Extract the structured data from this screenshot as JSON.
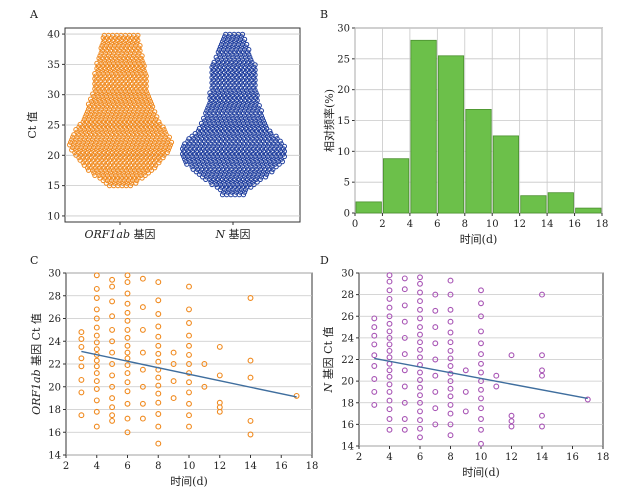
{
  "chart_data": [
    {
      "panel": "A",
      "type": "scatter",
      "categories": [
        "ORF1ab 基因",
        "N 基因"
      ],
      "category_parts": [
        {
          "italic": "ORF1ab",
          "rest": " 基因"
        },
        {
          "italic": "N",
          "rest": " 基因"
        }
      ],
      "ylabel": "Ct 值",
      "ylim": [
        9,
        41
      ],
      "yticks": [
        10,
        15,
        20,
        25,
        30,
        35,
        40
      ],
      "grid": true,
      "series": [
        {
          "category": "ORF1ab 基因",
          "color": "#F08A1F",
          "range": [
            15,
            40
          ],
          "density": [
            [
              15,
              6
            ],
            [
              16,
              10
            ],
            [
              17,
              14
            ],
            [
              18,
              17
            ],
            [
              19,
              20
            ],
            [
              20,
              22
            ],
            [
              21,
              24
            ],
            [
              22,
              25
            ],
            [
              23,
              24
            ],
            [
              24,
              22
            ],
            [
              25,
              20
            ],
            [
              26,
              18
            ],
            [
              27,
              17
            ],
            [
              28,
              16
            ],
            [
              29,
              15
            ],
            [
              30,
              14
            ],
            [
              31,
              13
            ],
            [
              32,
              13
            ],
            [
              33,
              13
            ],
            [
              34,
              12
            ],
            [
              35,
              12
            ],
            [
              36,
              11
            ],
            [
              37,
              10
            ],
            [
              38,
              10
            ],
            [
              39,
              9
            ],
            [
              40,
              9
            ]
          ]
        },
        {
          "category": "N 基因",
          "color": "#1F3E9E",
          "range": [
            13.5,
            40
          ],
          "density": [
            [
              14,
              6
            ],
            [
              15,
              10
            ],
            [
              16,
              14
            ],
            [
              17,
              18
            ],
            [
              18,
              21
            ],
            [
              19,
              24
            ],
            [
              20,
              25
            ],
            [
              21,
              25
            ],
            [
              22,
              24
            ],
            [
              23,
              21
            ],
            [
              24,
              18
            ],
            [
              25,
              16
            ],
            [
              26,
              15
            ],
            [
              27,
              14
            ],
            [
              28,
              13
            ],
            [
              29,
              12
            ],
            [
              30,
              12
            ],
            [
              31,
              11
            ],
            [
              32,
              11
            ],
            [
              33,
              11
            ],
            [
              34,
              11
            ],
            [
              35,
              11
            ],
            [
              36,
              9
            ],
            [
              37,
              8
            ],
            [
              38,
              7
            ],
            [
              39,
              6
            ],
            [
              40,
              5
            ]
          ]
        }
      ]
    },
    {
      "panel": "B",
      "type": "bar",
      "xlabel": "时间(d)",
      "ylabel": "相对频率(%)",
      "bin_edges": [
        0,
        2,
        4,
        6,
        8,
        10,
        12,
        14,
        16,
        18
      ],
      "values": [
        1.8,
        8.8,
        28.0,
        25.5,
        16.8,
        12.5,
        2.8,
        3.3,
        0.8
      ],
      "xlim": [
        0,
        18
      ],
      "ylim": [
        0,
        30
      ],
      "xticks": [
        0,
        2,
        4,
        6,
        8,
        10,
        12,
        14,
        16,
        18
      ],
      "yticks": [
        0,
        5,
        10,
        15,
        20,
        25,
        30
      ],
      "color": "#6CC04A",
      "grid": true
    },
    {
      "panel": "C",
      "type": "scatter",
      "xlabel": "时间(d)",
      "ylabel": "ORF1ab 基因 Ct 值",
      "ylabel_parts": {
        "italic": "ORF1ab",
        "rest": " 基因 Ct 值"
      },
      "xlim": [
        2,
        18
      ],
      "ylim": [
        14,
        30
      ],
      "xticks": [
        2,
        4,
        6,
        8,
        10,
        12,
        14,
        16,
        18
      ],
      "yticks": [
        14,
        16,
        18,
        20,
        22,
        24,
        26,
        28,
        30
      ],
      "color": "#F08A1F",
      "line_color": "#3F6E9E",
      "trend": {
        "x": [
          3,
          17
        ],
        "y": [
          23.1,
          19.1
        ]
      },
      "points": [
        [
          3,
          17.5
        ],
        [
          3,
          19.5
        ],
        [
          3,
          20.6
        ],
        [
          3,
          21.8
        ],
        [
          3,
          22.5
        ],
        [
          3,
          23.5
        ],
        [
          3,
          24.2
        ],
        [
          3,
          24.8
        ],
        [
          4,
          16.5
        ],
        [
          4,
          17.8
        ],
        [
          4,
          18.8
        ],
        [
          4,
          19.8
        ],
        [
          4,
          20.5
        ],
        [
          4,
          21.2
        ],
        [
          4,
          21.8
        ],
        [
          4,
          22.3
        ],
        [
          4,
          22.8
        ],
        [
          4,
          23.3
        ],
        [
          4,
          23.9
        ],
        [
          4,
          24.5
        ],
        [
          4,
          25.2
        ],
        [
          4,
          26.0
        ],
        [
          4,
          26.8
        ],
        [
          4,
          27.8
        ],
        [
          4,
          28.6
        ],
        [
          4,
          29.8
        ],
        [
          5,
          17.0
        ],
        [
          5,
          17.5
        ],
        [
          5,
          18.2
        ],
        [
          5,
          19.0
        ],
        [
          5,
          20.0
        ],
        [
          5,
          21.0
        ],
        [
          5,
          22.0
        ],
        [
          5,
          23.0
        ],
        [
          5,
          24.0
        ],
        [
          5,
          25.0
        ],
        [
          5,
          26.2
        ],
        [
          5,
          27.5
        ],
        [
          5,
          28.8
        ],
        [
          5,
          29.4
        ],
        [
          6,
          16.0
        ],
        [
          6,
          17.2
        ],
        [
          6,
          18.5
        ],
        [
          6,
          19.6
        ],
        [
          6,
          20.4
        ],
        [
          6,
          21.2
        ],
        [
          6,
          21.9
        ],
        [
          6,
          22.5
        ],
        [
          6,
          23.0
        ],
        [
          6,
          23.6
        ],
        [
          6,
          24.3
        ],
        [
          6,
          25.0
        ],
        [
          6,
          25.8
        ],
        [
          6,
          26.5
        ],
        [
          6,
          27.3
        ],
        [
          6,
          28.2
        ],
        [
          6,
          29.2
        ],
        [
          6,
          29.8
        ],
        [
          7,
          17.2
        ],
        [
          7,
          18.5
        ],
        [
          7,
          20.0
        ],
        [
          7,
          21.5
        ],
        [
          7,
          23.0
        ],
        [
          7,
          25.0
        ],
        [
          7,
          27.0
        ],
        [
          7,
          29.5
        ],
        [
          8,
          15.0
        ],
        [
          8,
          16.5
        ],
        [
          8,
          17.6
        ],
        [
          8,
          18.6
        ],
        [
          8,
          19.4
        ],
        [
          8,
          20.1
        ],
        [
          8,
          20.8
        ],
        [
          8,
          21.5
        ],
        [
          8,
          22.2
        ],
        [
          8,
          22.9
        ],
        [
          8,
          23.6
        ],
        [
          8,
          24.4
        ],
        [
          8,
          25.3
        ],
        [
          8,
          26.4
        ],
        [
          8,
          27.6
        ],
        [
          8,
          29.2
        ],
        [
          9,
          19.0
        ],
        [
          9,
          20.5
        ],
        [
          9,
          22.0
        ],
        [
          9,
          23.0
        ],
        [
          10,
          16.5
        ],
        [
          10,
          17.5
        ],
        [
          10,
          18.5
        ],
        [
          10,
          19.5
        ],
        [
          10,
          20.4
        ],
        [
          10,
          21.2
        ],
        [
          10,
          22.0
        ],
        [
          10,
          22.8
        ],
        [
          10,
          23.6
        ],
        [
          10,
          24.5
        ],
        [
          10,
          25.6
        ],
        [
          10,
          26.8
        ],
        [
          10,
          28.8
        ],
        [
          11,
          20.0
        ],
        [
          11,
          22.0
        ],
        [
          12,
          17.8
        ],
        [
          12,
          18.2
        ],
        [
          12,
          18.6
        ],
        [
          12,
          21.0
        ],
        [
          12,
          23.5
        ],
        [
          14,
          15.8
        ],
        [
          14,
          17.0
        ],
        [
          14,
          20.8
        ],
        [
          14,
          22.3
        ],
        [
          14,
          27.8
        ],
        [
          17,
          19.2
        ]
      ]
    },
    {
      "panel": "D",
      "type": "scatter",
      "xlabel": "时间(d)",
      "ylabel": "N 基因 Ct 值",
      "ylabel_parts": {
        "italic": "N",
        "rest": " 基因 Ct 值"
      },
      "xlim": [
        2,
        18
      ],
      "ylim": [
        14,
        30
      ],
      "xticks": [
        2,
        4,
        6,
        8,
        10,
        12,
        14,
        16,
        18
      ],
      "yticks": [
        14,
        16,
        18,
        20,
        22,
        24,
        26,
        28,
        30
      ],
      "color": "#A855B5",
      "line_color": "#3F6E9E",
      "trend": {
        "x": [
          3,
          17
        ],
        "y": [
          22.1,
          18.4
        ]
      },
      "points": [
        [
          3,
          17.8
        ],
        [
          3,
          19.0
        ],
        [
          3,
          20.2
        ],
        [
          3,
          21.4
        ],
        [
          3,
          22.4
        ],
        [
          3,
          23.4
        ],
        [
          3,
          24.2
        ],
        [
          3,
          25.0
        ],
        [
          3,
          25.8
        ],
        [
          4,
          15.5
        ],
        [
          4,
          16.5
        ],
        [
          4,
          17.4
        ],
        [
          4,
          18.2
        ],
        [
          4,
          19.0
        ],
        [
          4,
          19.7
        ],
        [
          4,
          20.4
        ],
        [
          4,
          21.0
        ],
        [
          4,
          21.6
        ],
        [
          4,
          22.2
        ],
        [
          4,
          22.8
        ],
        [
          4,
          23.4
        ],
        [
          4,
          24.0
        ],
        [
          4,
          24.6
        ],
        [
          4,
          25.3
        ],
        [
          4,
          26.0
        ],
        [
          4,
          26.8
        ],
        [
          4,
          27.6
        ],
        [
          4,
          28.4
        ],
        [
          4,
          29.2
        ],
        [
          4,
          29.8
        ],
        [
          5,
          15.5
        ],
        [
          5,
          16.5
        ],
        [
          5,
          18.0
        ],
        [
          5,
          19.5
        ],
        [
          5,
          21.0
        ],
        [
          5,
          22.5
        ],
        [
          5,
          24.0
        ],
        [
          5,
          25.5
        ],
        [
          5,
          27.0
        ],
        [
          5,
          28.5
        ],
        [
          5,
          29.5
        ],
        [
          6,
          14.8
        ],
        [
          6,
          15.6
        ],
        [
          6,
          16.4
        ],
        [
          6,
          17.2
        ],
        [
          6,
          18.0
        ],
        [
          6,
          18.7
        ],
        [
          6,
          19.4
        ],
        [
          6,
          20.1
        ],
        [
          6,
          20.8
        ],
        [
          6,
          21.5
        ],
        [
          6,
          22.2
        ],
        [
          6,
          22.9
        ],
        [
          6,
          23.6
        ],
        [
          6,
          24.3
        ],
        [
          6,
          25.0
        ],
        [
          6,
          25.8
        ],
        [
          6,
          26.6
        ],
        [
          6,
          27.4
        ],
        [
          6,
          28.2
        ],
        [
          6,
          29.0
        ],
        [
          6,
          29.6
        ],
        [
          7,
          16.0
        ],
        [
          7,
          17.5
        ],
        [
          7,
          19.0
        ],
        [
          7,
          20.5
        ],
        [
          7,
          22.0
        ],
        [
          7,
          23.5
        ],
        [
          7,
          25.0
        ],
        [
          7,
          26.5
        ],
        [
          7,
          28.0
        ],
        [
          8,
          15.0
        ],
        [
          8,
          16.0
        ],
        [
          8,
          17.0
        ],
        [
          8,
          17.8
        ],
        [
          8,
          18.6
        ],
        [
          8,
          19.3
        ],
        [
          8,
          20.0
        ],
        [
          8,
          20.7
        ],
        [
          8,
          21.4
        ],
        [
          8,
          22.1
        ],
        [
          8,
          22.8
        ],
        [
          8,
          23.6
        ],
        [
          8,
          24.5
        ],
        [
          8,
          25.5
        ],
        [
          8,
          26.6
        ],
        [
          8,
          28.0
        ],
        [
          8,
          29.3
        ],
        [
          9,
          17.2
        ],
        [
          9,
          19.0
        ],
        [
          9,
          21.0
        ],
        [
          10,
          14.2
        ],
        [
          10,
          15.5
        ],
        [
          10,
          16.5
        ],
        [
          10,
          17.5
        ],
        [
          10,
          18.4
        ],
        [
          10,
          19.2
        ],
        [
          10,
          20.0
        ],
        [
          10,
          20.8
        ],
        [
          10,
          21.6
        ],
        [
          10,
          22.5
        ],
        [
          10,
          23.5
        ],
        [
          10,
          24.6
        ],
        [
          10,
          26.0
        ],
        [
          10,
          27.2
        ],
        [
          10,
          28.4
        ],
        [
          11,
          19.5
        ],
        [
          11,
          20.5
        ],
        [
          12,
          15.8
        ],
        [
          12,
          16.3
        ],
        [
          12,
          16.8
        ],
        [
          12,
          22.4
        ],
        [
          14,
          15.8
        ],
        [
          14,
          16.8
        ],
        [
          14,
          20.5
        ],
        [
          14,
          21.0
        ],
        [
          14,
          22.4
        ],
        [
          14,
          28.0
        ],
        [
          17,
          18.3
        ]
      ]
    }
  ]
}
